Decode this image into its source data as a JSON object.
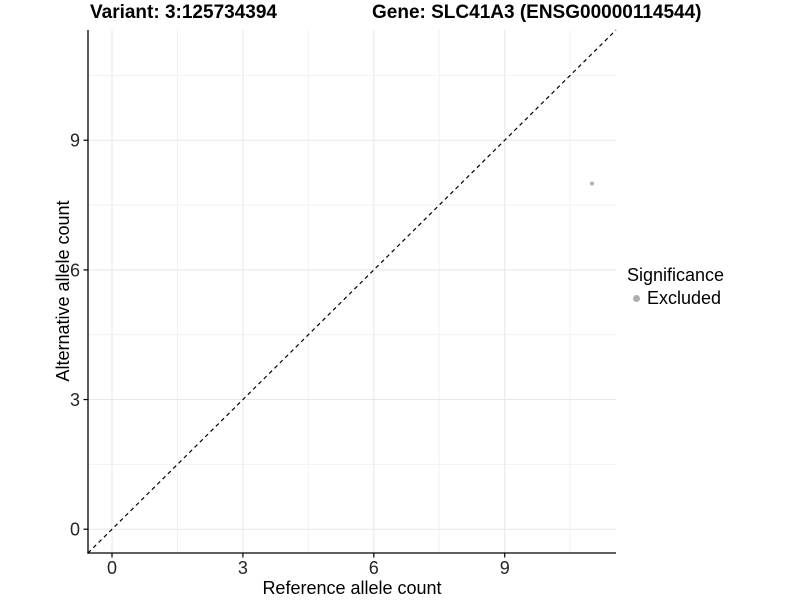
{
  "chart_data": {
    "type": "scatter",
    "title_left": "Variant: 3:125734394",
    "title_right": "Gene: SLC41A3 (ENSG00000114544)",
    "xlabel": "Reference allele count",
    "ylabel": "Alternative allele count",
    "xlim": [
      -0.55,
      11.55
    ],
    "ylim": [
      -0.55,
      11.55
    ],
    "x_ticks": [
      0,
      3,
      6,
      9
    ],
    "y_ticks": [
      0,
      3,
      6,
      9
    ],
    "x_minor_ticks": [
      1.5,
      4.5,
      7.5,
      10.5
    ],
    "y_minor_ticks": [
      1.5,
      4.5,
      7.5,
      10.5
    ],
    "grid": "major+minor",
    "identity_line": {
      "style": "dashed",
      "color": "#000000",
      "from": [
        -0.55,
        -0.55
      ],
      "to": [
        11.55,
        11.55
      ]
    },
    "series": [
      {
        "name": "Excluded",
        "color": "#b0b0b0",
        "points": [
          {
            "x": 11,
            "y": 8
          }
        ]
      }
    ],
    "legend": {
      "title": "Significance",
      "position": "right",
      "entries": [
        {
          "label": "Excluded",
          "color": "#b0b0b0"
        }
      ]
    },
    "colors": {
      "background": "#ffffff",
      "axis_line": "#000000",
      "tick_mark": "#000000",
      "tick_label": "#262626",
      "major_grid": "#e7e7e7",
      "minor_grid": "#f2f2f2",
      "point": "#b0b0b0"
    }
  }
}
